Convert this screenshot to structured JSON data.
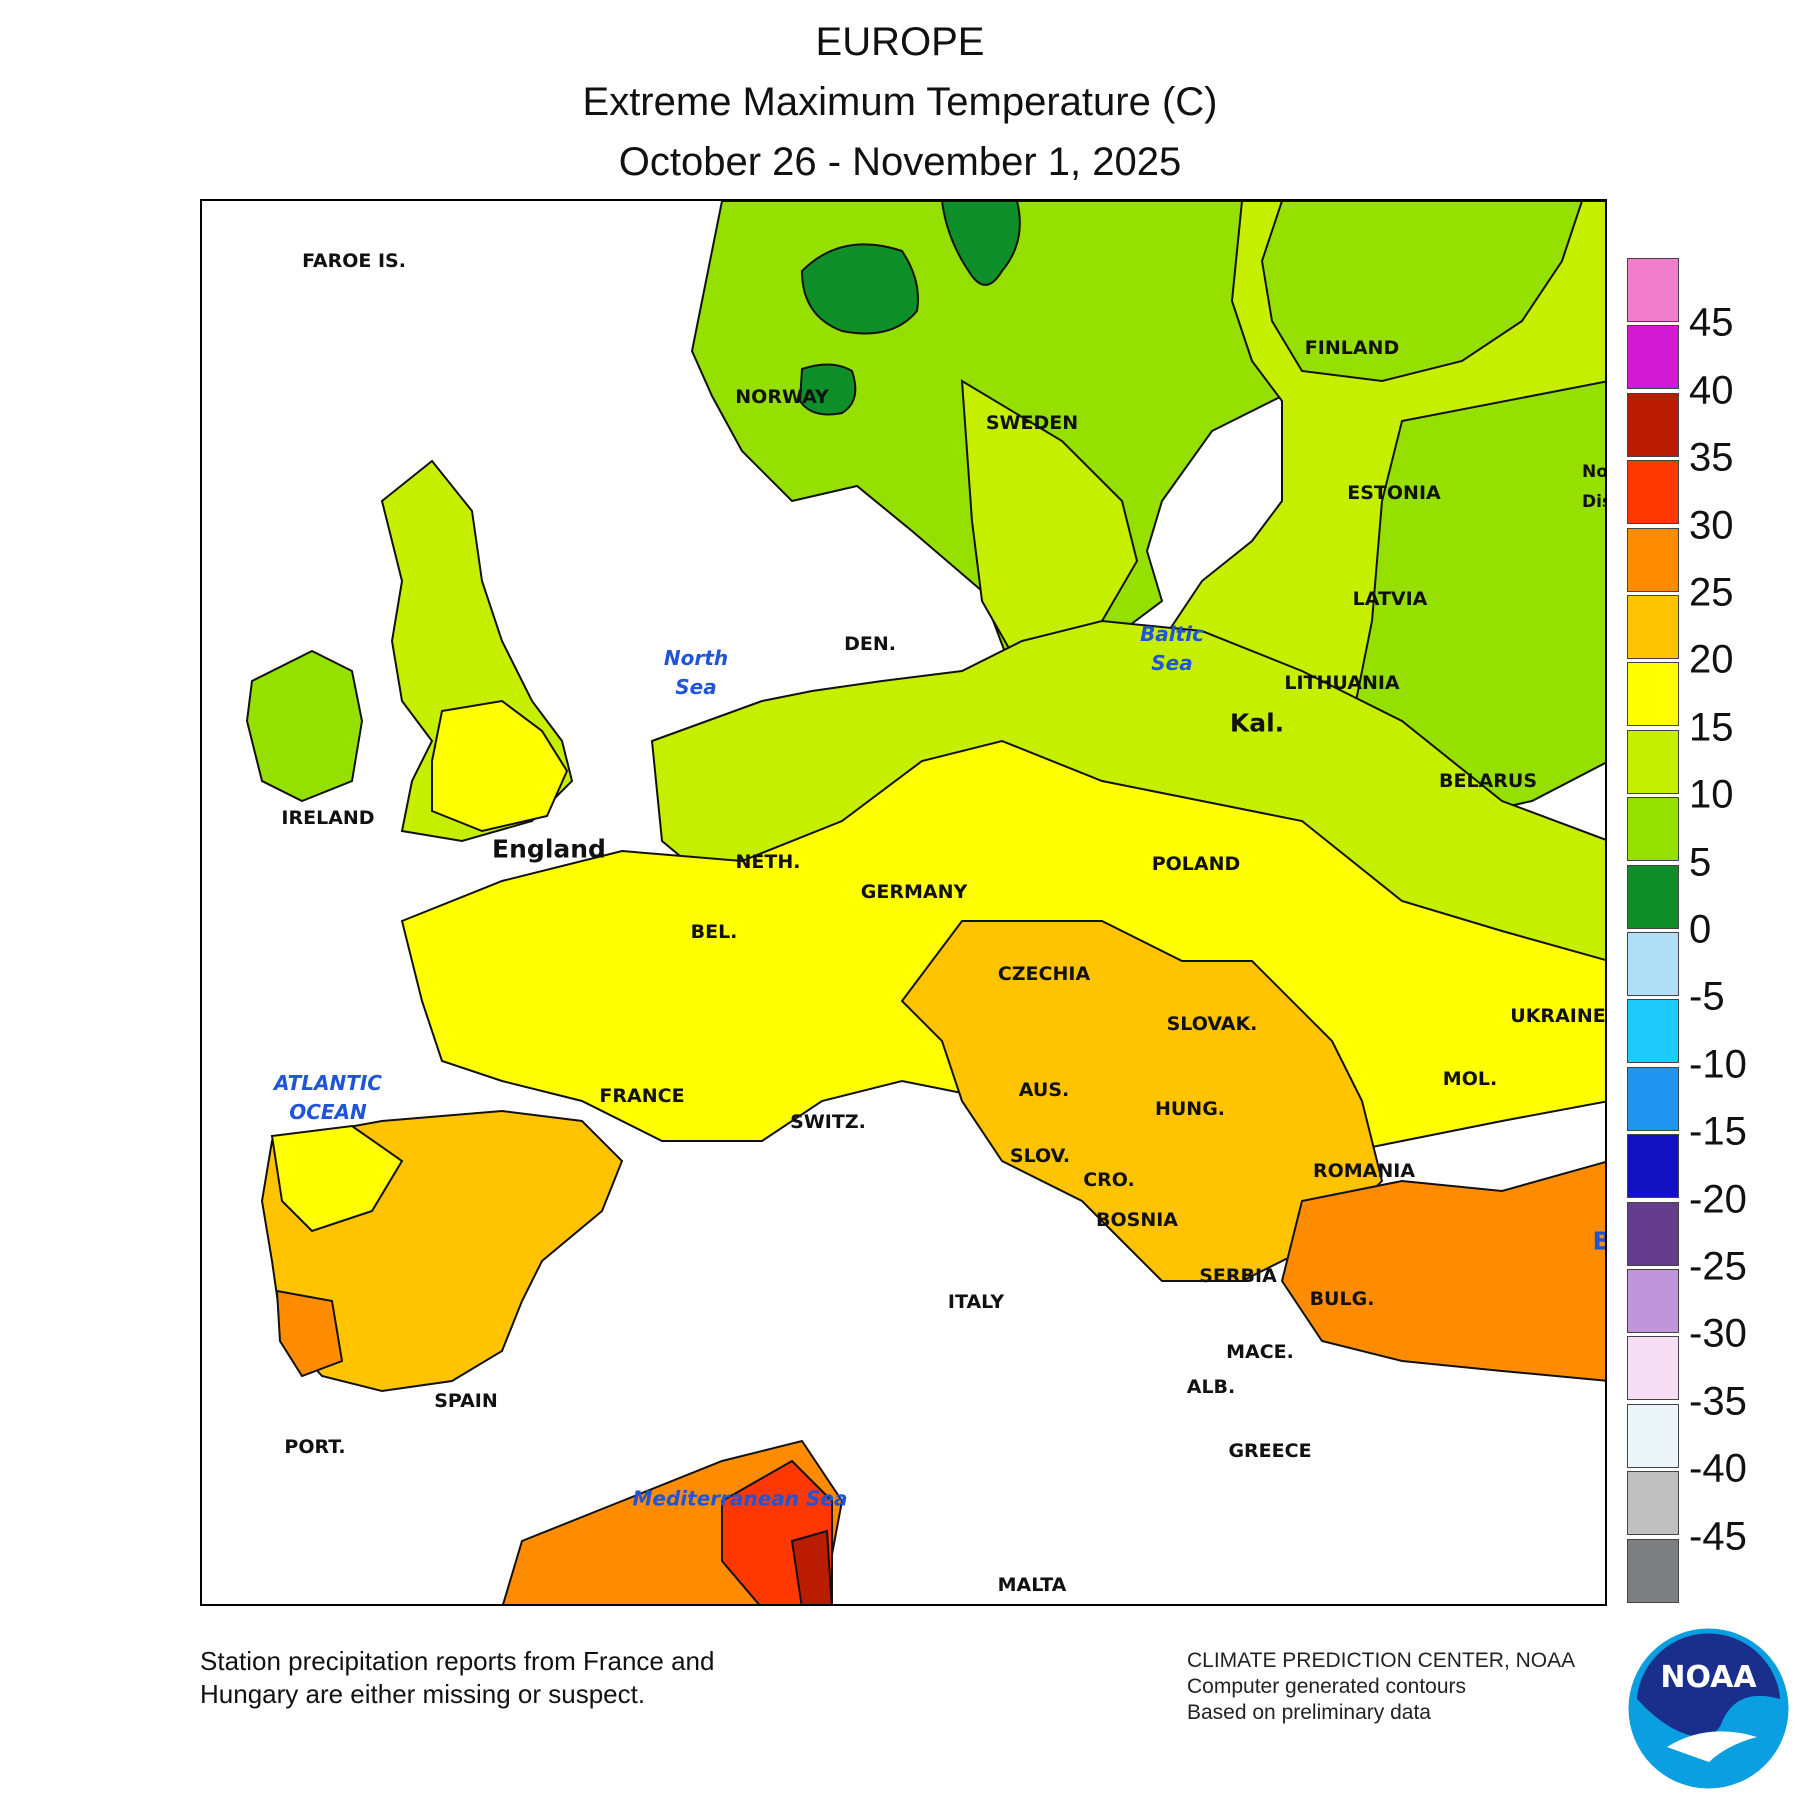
{
  "header": {
    "region": "EUROPE",
    "variable": "Extreme Maximum Temperature (C)",
    "period": "October 26 - November 1, 2025"
  },
  "map": {
    "country_labels": {
      "faroe": "FAROE IS.",
      "norway": "NORWAY",
      "sweden": "SWEDEN",
      "finland": "FINLAND",
      "northwest_district": "Northwest District",
      "estonia": "ESTONIA",
      "latvia": "LATVIA",
      "lithuania": "LITHUANIA",
      "kaliningrad": "Kal.",
      "belarus": "BELARUS",
      "denmark": "DEN.",
      "ireland": "IRELAND",
      "england": "England",
      "netherlands": "NETH.",
      "germany": "GERMANY",
      "poland": "POLAND",
      "belgium": "BEL.",
      "czechia": "CZECHIA",
      "ukraine": "UKRAINE",
      "slovakia": "SLOVAK.",
      "france": "FRANCE",
      "austria": "AUS.",
      "switzerland": "SWITZ.",
      "hungary": "HUNG.",
      "moldova": "MOL.",
      "slovenia": "SLOV.",
      "croatia": "CRO.",
      "romania": "ROMANIA",
      "bosnia": "BOSNIA",
      "serbia": "SERBIA",
      "italy": "ITALY",
      "bulgaria": "BULG.",
      "macedonia": "MACE.",
      "albania": "ALB.",
      "spain": "SPAIN",
      "portugal": "PORT.",
      "greece": "GREECE",
      "malta": "MALTA",
      "black_sea_partial": "B"
    },
    "water_labels": {
      "north_sea": [
        "North",
        "Sea"
      ],
      "baltic_sea": [
        "Baltic",
        "Sea"
      ],
      "atlantic": [
        "ATLANTIC",
        "OCEAN"
      ],
      "mediterranean": "Mediterranean Sea"
    },
    "temperature_bands_c": [
      {
        "range": [
          0,
          5
        ],
        "color": "#0f8f2a"
      },
      {
        "range": [
          5,
          10
        ],
        "color": "#95e000"
      },
      {
        "range": [
          10,
          15
        ],
        "color": "#c6ef00"
      },
      {
        "range": [
          15,
          20
        ],
        "color": "#ffff00"
      },
      {
        "range": [
          20,
          25
        ],
        "color": "#ffc300"
      },
      {
        "range": [
          25,
          30
        ],
        "color": "#ff8c00"
      },
      {
        "range": [
          30,
          35
        ],
        "color": "#ff3700"
      },
      {
        "range": [
          35,
          40
        ],
        "color": "#b91c00"
      }
    ]
  },
  "legend": {
    "swatches": [
      {
        "color": "#f07ecb"
      },
      {
        "color": "#d21ad2"
      },
      {
        "color": "#b91c00"
      },
      {
        "color": "#ff3700"
      },
      {
        "color": "#ff8c00"
      },
      {
        "color": "#ffc300"
      },
      {
        "color": "#ffff00"
      },
      {
        "color": "#c6ef00"
      },
      {
        "color": "#95e000"
      },
      {
        "color": "#0f8f2a"
      },
      {
        "color": "#b0def4"
      },
      {
        "color": "#1ec9fb"
      },
      {
        "color": "#2196f0"
      },
      {
        "color": "#1212c2"
      },
      {
        "color": "#653d8f"
      },
      {
        "color": "#c095d9"
      },
      {
        "color": "#f5ddf3"
      },
      {
        "color": "#ecf6fa"
      },
      {
        "color": "#c0c0c0"
      },
      {
        "color": "#7b7f7f"
      }
    ],
    "ticks": [
      "45",
      "40",
      "35",
      "30",
      "25",
      "20",
      "15",
      "10",
      "5",
      "0",
      "-5",
      "-10",
      "-15",
      "-20",
      "-25",
      "-30",
      "-35",
      "-40",
      "-45"
    ]
  },
  "footer": {
    "note_line1": "Station precipitation reports from France and",
    "note_line2": "Hungary are either missing or suspect.",
    "credit_line1": "CLIMATE PREDICTION CENTER, NOAA",
    "credit_line2": "Computer generated contours",
    "credit_line3": "Based on preliminary data",
    "logo_text": "NOAA"
  }
}
